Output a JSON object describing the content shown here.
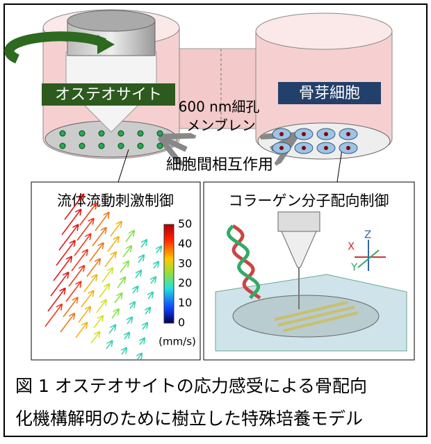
{
  "illustration": {
    "left_label": "オステオサイト",
    "right_label": "骨芽細胞",
    "membrane": [
      "600 nm細孔",
      "メンブレン"
    ],
    "interaction": "細胞間相互作用"
  },
  "panels": [
    {
      "title": "流体流動刺激制御",
      "colorbar_ticks": [
        "50",
        "40",
        "30",
        "20",
        "10",
        "0"
      ],
      "colorbar_unit": "(mm/s)"
    },
    {
      "title": "コラーゲン分子配向制御",
      "axes": [
        "X",
        "Y",
        "Z"
      ]
    }
  ],
  "caption": [
    "図 1 オステオサイトの応力感受による骨配向",
    "化機構解明のために樹立した特殊培養モデル"
  ]
}
